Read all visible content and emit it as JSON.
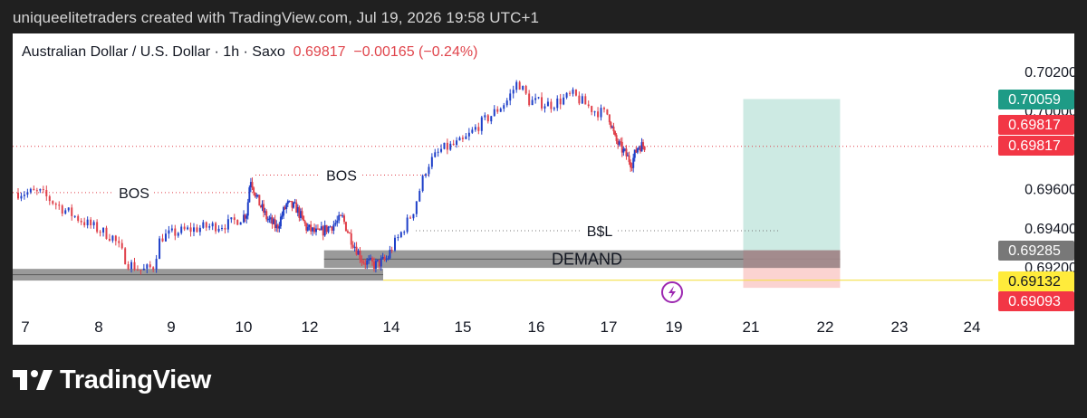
{
  "header": {
    "credit": "uniqueelitetraders created with TradingView.com, Jul 19, 2026 19:58 UTC+1"
  },
  "legend": {
    "symbol": "Australian Dollar / U.S. Dollar · 1h · Saxo",
    "price": "0.69817",
    "change": "−0.00165 (−0.24%)"
  },
  "footer": {
    "brand": "TradingView"
  },
  "colors": {
    "up": "#1e3fc8",
    "down": "#e0404a",
    "teal_label": "#1e9b86",
    "red_label": "#f23645",
    "gray_label": "#787878",
    "yellow_label": "#ffeb3b"
  },
  "chart_data": {
    "type": "candlestick",
    "symbol": "AUDUSD",
    "interval": "1h",
    "x_ticks": [
      "7",
      "8",
      "9",
      "10",
      "12",
      "14",
      "15",
      "16",
      "17",
      "19",
      "21",
      "22",
      "23",
      "24"
    ],
    "y_ticks": [
      "0.70200",
      "0.70000",
      "0.69600",
      "0.69400",
      "0.69200"
    ],
    "ylim": [
      0.6906,
      0.7024
    ],
    "price_labels": [
      {
        "text": "0.70059",
        "value": 0.70059,
        "color": "teal"
      },
      {
        "text": "0.69817",
        "value": 0.69817,
        "color": "red"
      },
      {
        "text": "0.69817",
        "value": 0.69817,
        "color": "red"
      },
      {
        "text": "0.69285",
        "value": 0.69285,
        "color": "gray"
      },
      {
        "text": "0.69132",
        "value": 0.69132,
        "color": "yellow"
      },
      {
        "text": "0.69093",
        "value": 0.69093,
        "color": "red"
      }
    ],
    "annotations": [
      "BOS",
      "BOS",
      "B$L",
      "DEMAND"
    ],
    "long_position": {
      "entry": 0.69285,
      "target": 0.70059,
      "stop": 0.69093,
      "x_from": 20.8,
      "x_to": 22.2
    },
    "demand_zone": {
      "top": 0.69285,
      "bottom": 0.69195,
      "x_from": 12.35,
      "x_to": 22.2
    },
    "lower_zone": {
      "top": 0.6919,
      "bottom": 0.6913,
      "x_from": 6.8,
      "x_to": 13.8
    },
    "close_path": [
      [
        6.9,
        0.6958
      ],
      [
        7.2,
        0.6958
      ],
      [
        7.5,
        0.695
      ],
      [
        7.8,
        0.6943
      ],
      [
        8.2,
        0.6935
      ],
      [
        8.4,
        0.6922
      ],
      [
        8.6,
        0.6918
      ],
      [
        8.75,
        0.692
      ],
      [
        8.85,
        0.6935
      ],
      [
        9.1,
        0.6938
      ],
      [
        9.4,
        0.694
      ],
      [
        9.8,
        0.6942
      ],
      [
        10.1,
        0.6948
      ],
      [
        10.2,
        0.6966
      ],
      [
        10.4,
        0.6955
      ],
      [
        10.7,
        0.6945
      ],
      [
        11.0,
        0.694
      ],
      [
        11.3,
        0.6952
      ],
      [
        11.6,
        0.695
      ],
      [
        11.9,
        0.694
      ],
      [
        12.2,
        0.6937
      ],
      [
        12.6,
        0.6942
      ],
      [
        12.8,
        0.6945
      ],
      [
        13.0,
        0.6935
      ],
      [
        13.3,
        0.6923
      ],
      [
        13.6,
        0.6921
      ],
      [
        13.9,
        0.6924
      ],
      [
        14.1,
        0.6935
      ],
      [
        14.3,
        0.6948
      ],
      [
        14.5,
        0.6972
      ],
      [
        14.7,
        0.698
      ],
      [
        15.0,
        0.6984
      ],
      [
        15.2,
        0.6992
      ],
      [
        15.4,
        0.6998
      ],
      [
        15.6,
        0.7005
      ],
      [
        15.75,
        0.7015
      ],
      [
        15.9,
        0.7005
      ],
      [
        16.2,
        0.7003
      ],
      [
        16.5,
        0.7008
      ],
      [
        16.8,
        0.7
      ],
      [
        17.0,
        0.6998
      ],
      [
        17.2,
        0.6985
      ],
      [
        17.5,
        0.6978
      ],
      [
        17.7,
        0.6973
      ],
      [
        17.9,
        0.6982
      ],
      [
        18.1,
        0.6982
      ]
    ]
  }
}
